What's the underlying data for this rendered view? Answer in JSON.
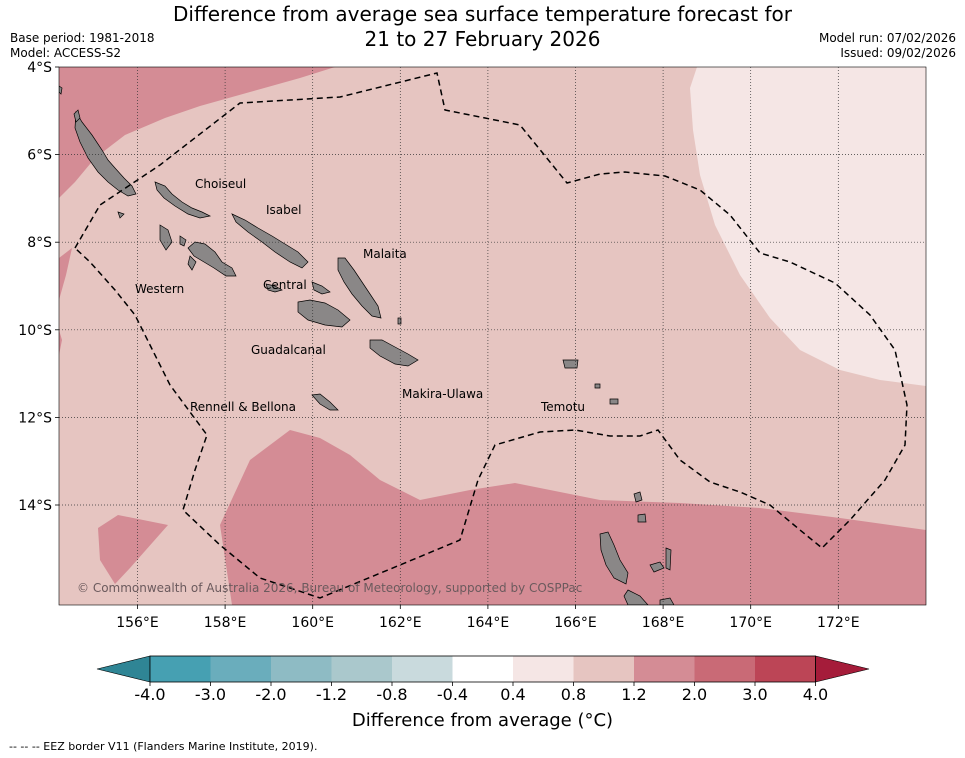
{
  "title_line1": "Difference from average sea surface temperature forecast for",
  "title_line2": "21 to 27 February 2026",
  "meta": {
    "base_period": "Base period: 1981-2018",
    "model": "Model: ACCESS-S2",
    "model_run": "Model run: 07/02/2026",
    "issued": "Issued: 09/02/2026"
  },
  "map": {
    "region": "Solomon Islands",
    "lat_ticks": [
      "4°S",
      "6°S",
      "8°S",
      "10°S",
      "12°S",
      "14°S"
    ],
    "lon_ticks": [
      "156°E",
      "158°E",
      "160°E",
      "162°E",
      "164°E",
      "166°E",
      "168°E",
      "170°E",
      "172°E"
    ],
    "province_labels": [
      "Choiseul",
      "Isabel",
      "Malaita",
      "Western",
      "Central",
      "Guadalcanal",
      "Makira-Ulawa",
      "Rennell & Bellona",
      "Temotu"
    ],
    "copyright": "© Commonwealth of Australia 2026, Bureau of Meteorology, supported by COSPPac"
  },
  "colorbar": {
    "labels": [
      "-4.0",
      "-3.0",
      "-2.0",
      "-1.2",
      "-0.8",
      "-0.4",
      "0.4",
      "0.8",
      "1.2",
      "2.0",
      "3.0",
      "4.0"
    ],
    "colors": [
      "#2f8595",
      "#46a0b2",
      "#6aadbc",
      "#8ebbc4",
      "#aac8cc",
      "#c9dadd",
      "#ffffff",
      "#f5e6e5",
      "#e6c5c1",
      "#d48c95",
      "#c96a76",
      "#bc4556",
      "#a51c3a"
    ],
    "title": "Difference from average (°C)"
  },
  "colors": {
    "land": "#8a8787",
    "band_0_4_0_8": "#f5e6e5",
    "band_0_8_1_2": "#e6c5c1",
    "band_1_2_2_0": "#d48c95",
    "band_2_0_3_0": "#c96a76"
  },
  "footnote": "-- -- -- EEZ border V11 (Flanders Marine Institute, 2019)."
}
